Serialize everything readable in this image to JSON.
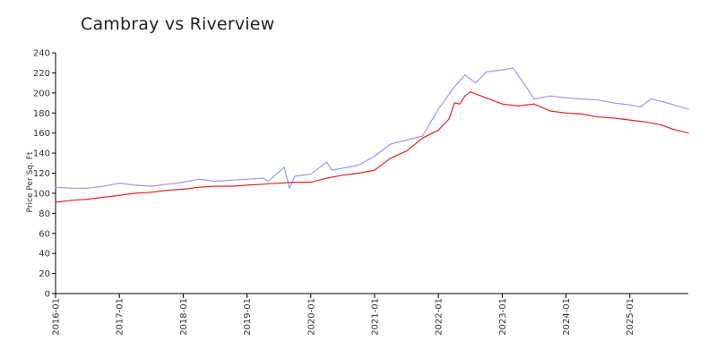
{
  "chart_data": {
    "type": "line",
    "title": "Cambray vs Riverview",
    "xlabel": "",
    "ylabel": "Price Per Sq. Ft",
    "ylim": [
      0,
      240
    ],
    "yticks": [
      0,
      20,
      40,
      60,
      80,
      100,
      120,
      140,
      160,
      180,
      200,
      220,
      240
    ],
    "xlim": [
      "2016-01",
      "2025-12"
    ],
    "xticks": [
      "2016-01",
      "2017-01",
      "2018-01",
      "2019-01",
      "2020-01",
      "2021-01",
      "2022-01",
      "2023-01",
      "2024-01",
      "2025-01"
    ],
    "grid": false,
    "legend": "none",
    "series": [
      {
        "color": "#9999ee",
        "points": [
          [
            "2016-01",
            106
          ],
          [
            "2016-04",
            105
          ],
          [
            "2016-07",
            105
          ],
          [
            "2016-10",
            107
          ],
          [
            "2017-01",
            110
          ],
          [
            "2017-04",
            108
          ],
          [
            "2017-07",
            107
          ],
          [
            "2017-10",
            109
          ],
          [
            "2018-01",
            111
          ],
          [
            "2018-04",
            114
          ],
          [
            "2018-07",
            112
          ],
          [
            "2018-10",
            113
          ],
          [
            "2019-01",
            114
          ],
          [
            "2019-04",
            115
          ],
          [
            "2019-05",
            112
          ],
          [
            "2019-08",
            126
          ],
          [
            "2019-09",
            105
          ],
          [
            "2019-10",
            117
          ],
          [
            "2020-01",
            119
          ],
          [
            "2020-04",
            131
          ],
          [
            "2020-05",
            123
          ],
          [
            "2020-07",
            125
          ],
          [
            "2020-10",
            128
          ],
          [
            "2021-01",
            137
          ],
          [
            "2021-04",
            149
          ],
          [
            "2021-07",
            153
          ],
          [
            "2021-10",
            157
          ],
          [
            "2022-01",
            184
          ],
          [
            "2022-04",
            206
          ],
          [
            "2022-06",
            218
          ],
          [
            "2022-08",
            210
          ],
          [
            "2022-10",
            221
          ],
          [
            "2023-01",
            223
          ],
          [
            "2023-03",
            225
          ],
          [
            "2023-05",
            210
          ],
          [
            "2023-07",
            194
          ],
          [
            "2023-10",
            197
          ],
          [
            "2024-01",
            195
          ],
          [
            "2024-04",
            194
          ],
          [
            "2024-07",
            193
          ],
          [
            "2024-10",
            190
          ],
          [
            "2025-01",
            188
          ],
          [
            "2025-03",
            186
          ],
          [
            "2025-05",
            194
          ],
          [
            "2025-08",
            190
          ],
          [
            "2025-12",
            184
          ]
        ]
      },
      {
        "color": "#ee2222",
        "points": [
          [
            "2016-01",
            91
          ],
          [
            "2016-04",
            93
          ],
          [
            "2016-07",
            94
          ],
          [
            "2016-10",
            96
          ],
          [
            "2017-01",
            98
          ],
          [
            "2017-04",
            100
          ],
          [
            "2017-07",
            101
          ],
          [
            "2017-10",
            103
          ],
          [
            "2018-01",
            104
          ],
          [
            "2018-04",
            106
          ],
          [
            "2018-07",
            107
          ],
          [
            "2018-10",
            107
          ],
          [
            "2019-01",
            108
          ],
          [
            "2019-04",
            109
          ],
          [
            "2019-07",
            110
          ],
          [
            "2019-10",
            111
          ],
          [
            "2020-01",
            111
          ],
          [
            "2020-04",
            115
          ],
          [
            "2020-07",
            118
          ],
          [
            "2020-10",
            120
          ],
          [
            "2021-01",
            123
          ],
          [
            "2021-04",
            135
          ],
          [
            "2021-07",
            142
          ],
          [
            "2021-10",
            155
          ],
          [
            "2022-01",
            163
          ],
          [
            "2022-03",
            174
          ],
          [
            "2022-04",
            190
          ],
          [
            "2022-05",
            189
          ],
          [
            "2022-06",
            197
          ],
          [
            "2022-07",
            201
          ],
          [
            "2022-10",
            195
          ],
          [
            "2023-01",
            189
          ],
          [
            "2023-04",
            187
          ],
          [
            "2023-07",
            189
          ],
          [
            "2023-10",
            182
          ],
          [
            "2024-01",
            180
          ],
          [
            "2024-04",
            179
          ],
          [
            "2024-07",
            176
          ],
          [
            "2024-10",
            175
          ],
          [
            "2025-01",
            173
          ],
          [
            "2025-04",
            171
          ],
          [
            "2025-07",
            168
          ],
          [
            "2025-09",
            164
          ],
          [
            "2025-12",
            160
          ]
        ]
      }
    ]
  }
}
